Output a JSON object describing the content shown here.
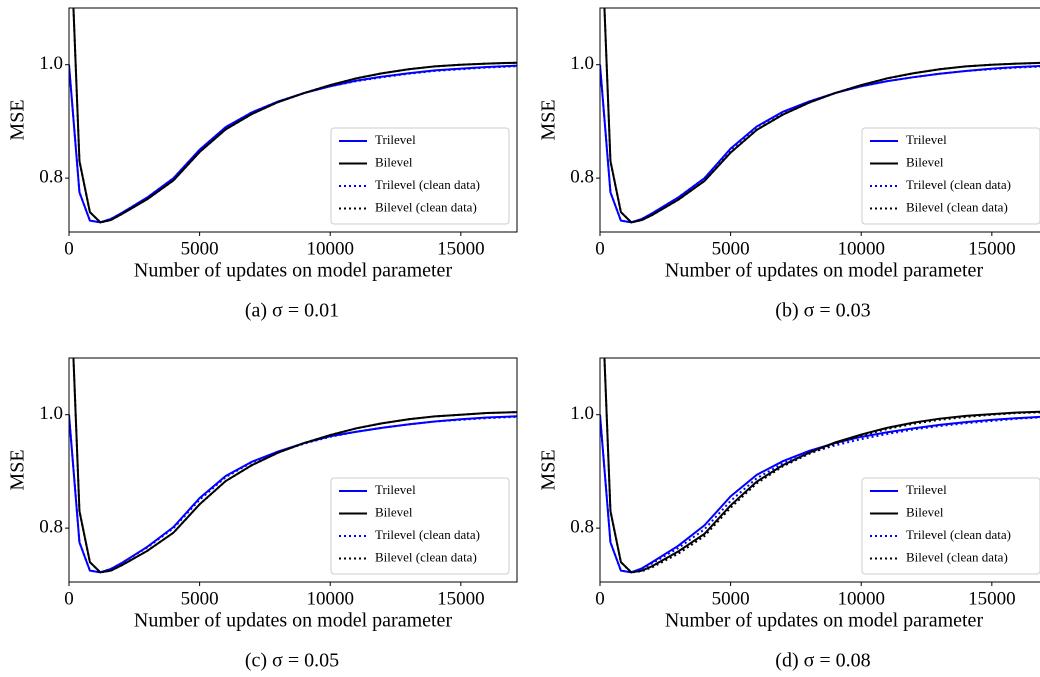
{
  "chart_data": [
    {
      "type": "line",
      "title": "(a) σ = 0.01",
      "xlabel": "Number of updates on model parameter",
      "ylabel": "MSE",
      "x": [
        0,
        400,
        800,
        1200,
        1600,
        2000,
        3000,
        4000,
        5000,
        6000,
        7000,
        8000,
        9000,
        10000,
        11000,
        12000,
        13000,
        14000,
        15000,
        16000,
        17500
      ],
      "series": [
        {
          "name": "Trilevel",
          "color": "#0000ff",
          "dash": "solid",
          "values": [
            1.0,
            0.775,
            0.725,
            0.722,
            0.728,
            0.738,
            0.766,
            0.8,
            0.85,
            0.89,
            0.916,
            0.935,
            0.95,
            0.962,
            0.972,
            0.979,
            0.985,
            0.99,
            0.993,
            0.996,
            0.999
          ]
        },
        {
          "name": "Bilevel",
          "color": "#000000",
          "dash": "solid",
          "values": [
            1.3,
            0.83,
            0.74,
            0.722,
            0.726,
            0.736,
            0.763,
            0.796,
            0.846,
            0.886,
            0.913,
            0.934,
            0.95,
            0.964,
            0.976,
            0.985,
            0.992,
            0.997,
            1.0,
            1.002,
            1.004
          ]
        },
        {
          "name": "Trilevel (clean data)",
          "color": "#0000ff",
          "dash": "dotted",
          "values": [
            1.0,
            0.775,
            0.725,
            0.722,
            0.728,
            0.738,
            0.766,
            0.8,
            0.85,
            0.89,
            0.916,
            0.935,
            0.95,
            0.962,
            0.971,
            0.978,
            0.984,
            0.989,
            0.992,
            0.995,
            0.998
          ]
        },
        {
          "name": "Bilevel (clean data)",
          "color": "#000000",
          "dash": "dotted",
          "values": [
            1.3,
            0.83,
            0.74,
            0.722,
            0.726,
            0.736,
            0.763,
            0.796,
            0.846,
            0.886,
            0.913,
            0.934,
            0.95,
            0.964,
            0.976,
            0.985,
            0.992,
            0.997,
            1.0,
            1.002,
            1.004
          ]
        }
      ],
      "xlim": [
        0,
        17150
      ],
      "ylim": [
        0.705,
        1.1
      ],
      "xticks": [
        0,
        5000,
        10000,
        15000
      ],
      "yticks": [
        0.8,
        {
          "value": 1,
          "label": "1.0"
        }
      ],
      "legend": "lower right"
    },
    {
      "type": "line",
      "title": "(b) σ = 0.03",
      "xlabel": "Number of updates on model parameter",
      "ylabel": "MSE",
      "x": [
        0,
        400,
        800,
        1200,
        1600,
        2000,
        3000,
        4000,
        5000,
        6000,
        7000,
        8000,
        9000,
        10000,
        11000,
        12000,
        13000,
        14000,
        15000,
        16000,
        17500
      ],
      "series": [
        {
          "name": "Trilevel",
          "color": "#0000ff",
          "dash": "solid",
          "values": [
            1.0,
            0.775,
            0.725,
            0.722,
            0.728,
            0.738,
            0.766,
            0.8,
            0.852,
            0.891,
            0.917,
            0.935,
            0.95,
            0.962,
            0.971,
            0.978,
            0.984,
            0.989,
            0.993,
            0.996,
            0.999
          ]
        },
        {
          "name": "Bilevel",
          "color": "#000000",
          "dash": "solid",
          "values": [
            1.3,
            0.83,
            0.74,
            0.722,
            0.726,
            0.735,
            0.762,
            0.795,
            0.845,
            0.885,
            0.912,
            0.933,
            0.95,
            0.964,
            0.976,
            0.985,
            0.992,
            0.997,
            1.0,
            1.002,
            1.004
          ]
        },
        {
          "name": "Trilevel (clean data)",
          "color": "#0000ff",
          "dash": "dotted",
          "values": [
            1.0,
            0.775,
            0.725,
            0.722,
            0.728,
            0.738,
            0.766,
            0.8,
            0.85,
            0.89,
            0.916,
            0.935,
            0.95,
            0.962,
            0.971,
            0.978,
            0.984,
            0.989,
            0.992,
            0.995,
            0.998
          ]
        },
        {
          "name": "Bilevel (clean data)",
          "color": "#000000",
          "dash": "dotted",
          "values": [
            1.3,
            0.83,
            0.74,
            0.722,
            0.726,
            0.735,
            0.762,
            0.795,
            0.845,
            0.885,
            0.912,
            0.933,
            0.95,
            0.964,
            0.976,
            0.985,
            0.992,
            0.997,
            1.0,
            1.002,
            1.004
          ]
        }
      ],
      "xlim": [
        0,
        17150
      ],
      "ylim": [
        0.705,
        1.1
      ],
      "xticks": [
        0,
        5000,
        10000,
        15000
      ],
      "yticks": [
        0.8,
        {
          "value": 1,
          "label": "1.0"
        }
      ],
      "legend": "lower right"
    },
    {
      "type": "line",
      "title": "(c) σ = 0.05",
      "xlabel": "Number of updates on model parameter",
      "ylabel": "MSE",
      "x": [
        0,
        400,
        800,
        1200,
        1600,
        2000,
        3000,
        4000,
        5000,
        6000,
        7000,
        8000,
        9000,
        10000,
        11000,
        12000,
        13000,
        14000,
        15000,
        16000,
        17500
      ],
      "series": [
        {
          "name": "Trilevel",
          "color": "#0000ff",
          "dash": "solid",
          "values": [
            1.0,
            0.775,
            0.725,
            0.722,
            0.728,
            0.738,
            0.767,
            0.802,
            0.853,
            0.892,
            0.917,
            0.935,
            0.95,
            0.962,
            0.97,
            0.977,
            0.983,
            0.988,
            0.992,
            0.995,
            0.998
          ]
        },
        {
          "name": "Bilevel",
          "color": "#000000",
          "dash": "solid",
          "values": [
            1.3,
            0.83,
            0.74,
            0.722,
            0.725,
            0.734,
            0.76,
            0.792,
            0.842,
            0.883,
            0.911,
            0.933,
            0.95,
            0.964,
            0.976,
            0.985,
            0.992,
            0.997,
            1.0,
            1.003,
            1.005
          ]
        },
        {
          "name": "Trilevel (clean data)",
          "color": "#0000ff",
          "dash": "dotted",
          "values": [
            1.0,
            0.775,
            0.725,
            0.722,
            0.728,
            0.738,
            0.766,
            0.8,
            0.85,
            0.89,
            0.916,
            0.934,
            0.949,
            0.961,
            0.97,
            0.977,
            0.983,
            0.988,
            0.991,
            0.994,
            0.997
          ]
        },
        {
          "name": "Bilevel (clean data)",
          "color": "#000000",
          "dash": "dotted",
          "values": [
            1.3,
            0.83,
            0.74,
            0.722,
            0.725,
            0.734,
            0.76,
            0.792,
            0.842,
            0.883,
            0.911,
            0.933,
            0.95,
            0.964,
            0.976,
            0.985,
            0.992,
            0.997,
            1.0,
            1.003,
            1.005
          ]
        }
      ],
      "xlim": [
        0,
        17150
      ],
      "ylim": [
        0.705,
        1.1
      ],
      "xticks": [
        0,
        5000,
        10000,
        15000
      ],
      "yticks": [
        0.8,
        {
          "value": 1,
          "label": "1.0"
        }
      ],
      "legend": "lower right"
    },
    {
      "type": "line",
      "title": "(d) σ = 0.08",
      "xlabel": "Number of updates on model parameter",
      "ylabel": "MSE",
      "x": [
        0,
        400,
        800,
        1200,
        1600,
        2000,
        3000,
        4000,
        5000,
        6000,
        7000,
        8000,
        9000,
        10000,
        11000,
        12000,
        13000,
        14000,
        15000,
        16000,
        17500
      ],
      "series": [
        {
          "name": "Trilevel",
          "color": "#0000ff",
          "dash": "solid",
          "values": [
            1.0,
            0.775,
            0.725,
            0.722,
            0.729,
            0.74,
            0.769,
            0.805,
            0.856,
            0.894,
            0.918,
            0.936,
            0.95,
            0.961,
            0.969,
            0.976,
            0.982,
            0.987,
            0.991,
            0.994,
            0.998
          ]
        },
        {
          "name": "Bilevel",
          "color": "#000000",
          "dash": "solid",
          "values": [
            1.3,
            0.83,
            0.74,
            0.722,
            0.725,
            0.733,
            0.759,
            0.79,
            0.84,
            0.882,
            0.911,
            0.933,
            0.951,
            0.965,
            0.977,
            0.986,
            0.993,
            0.998,
            1.001,
            1.004,
            1.006
          ]
        },
        {
          "name": "Trilevel (clean data)",
          "color": "#0000ff",
          "dash": "dotted",
          "values": [
            1.0,
            0.775,
            0.725,
            0.722,
            0.728,
            0.738,
            0.765,
            0.798,
            0.848,
            0.888,
            0.914,
            0.932,
            0.946,
            0.957,
            0.966,
            0.974,
            0.98,
            0.985,
            0.989,
            0.993,
            0.997
          ]
        },
        {
          "name": "Bilevel (clean data)",
          "color": "#000000",
          "dash": "dotted",
          "values": [
            1.3,
            0.83,
            0.74,
            0.722,
            0.724,
            0.731,
            0.755,
            0.786,
            0.836,
            0.879,
            0.909,
            0.931,
            0.949,
            0.963,
            0.975,
            0.984,
            0.991,
            0.996,
            1.0,
            1.003,
            1.005
          ]
        }
      ],
      "xlim": [
        0,
        17150
      ],
      "ylim": [
        0.705,
        1.1
      ],
      "xticks": [
        0,
        5000,
        10000,
        15000
      ],
      "yticks": [
        0.8,
        {
          "value": 1,
          "label": "1.0"
        }
      ],
      "legend": "lower right"
    }
  ]
}
